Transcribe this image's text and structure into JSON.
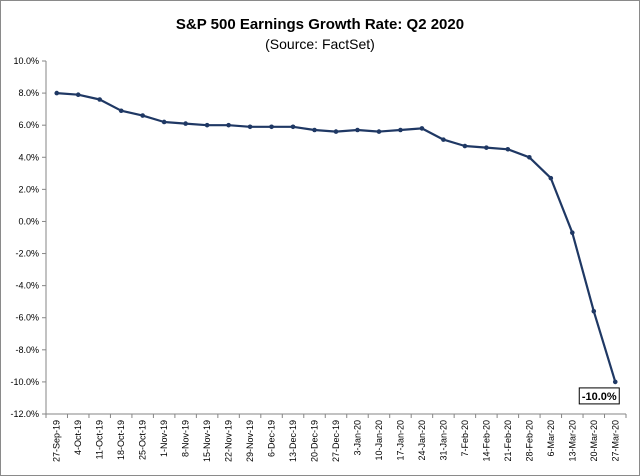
{
  "chart_data": {
    "type": "line",
    "title": "S&P 500 Earnings Growth Rate: Q2 2020",
    "subtitle": "(Source: FactSet)",
    "xlabel": "",
    "ylabel": "",
    "ylim": [
      -12,
      10
    ],
    "y_ticks": [
      10,
      8,
      6,
      4,
      2,
      0,
      -2,
      -4,
      -6,
      -8,
      -10,
      -12
    ],
    "y_tick_labels": [
      "10.0%",
      "8.0%",
      "6.0%",
      "4.0%",
      "2.0%",
      "0.0%",
      "-2.0%",
      "-4.0%",
      "-6.0%",
      "-8.0%",
      "-10.0%",
      "-12.0%"
    ],
    "grid": false,
    "legend": "none",
    "line_color": "#1f3864",
    "categories": [
      "27-Sep-19",
      "4-Oct-19",
      "11-Oct-19",
      "18-Oct-19",
      "25-Oct-19",
      "1-Nov-19",
      "8-Nov-19",
      "15-Nov-19",
      "22-Nov-19",
      "29-Nov-19",
      "6-Dec-19",
      "13-Dec-19",
      "20-Dec-19",
      "27-Dec-19",
      "3-Jan-20",
      "10-Jan-20",
      "17-Jan-20",
      "24-Jan-20",
      "31-Jan-20",
      "7-Feb-20",
      "14-Feb-20",
      "21-Feb-20",
      "28-Feb-20",
      "6-Mar-20",
      "13-Mar-20",
      "20-Mar-20",
      "27-Mar-20"
    ],
    "series": [
      {
        "values": [
          8.0,
          7.9,
          7.6,
          6.9,
          6.6,
          6.2,
          6.1,
          6.0,
          6.0,
          5.9,
          5.9,
          5.9,
          5.7,
          5.6,
          5.7,
          5.6,
          5.7,
          5.8,
          5.1,
          4.7,
          4.6,
          4.5,
          4.0,
          2.7,
          -0.7,
          -5.6,
          -10.0
        ]
      }
    ],
    "annotations": [
      {
        "category": "27-Mar-20",
        "text": "-10.0%"
      }
    ]
  }
}
